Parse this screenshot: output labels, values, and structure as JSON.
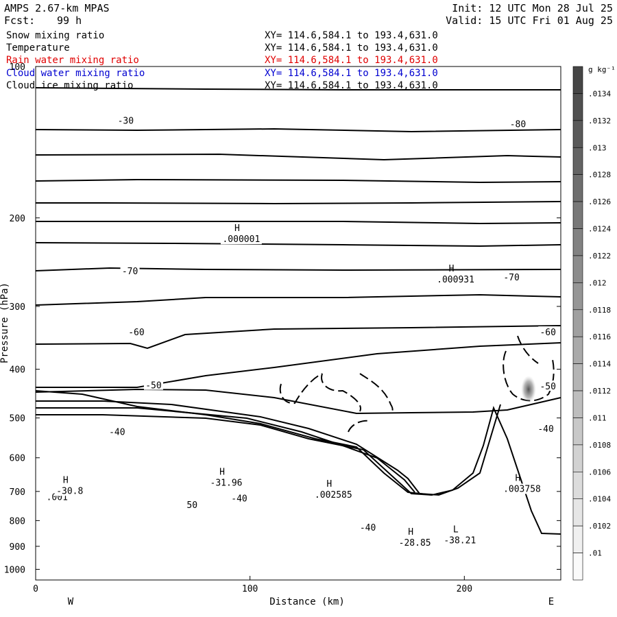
{
  "header": {
    "model": "AMPS 2.67-km MPAS",
    "fcst_label": "Fcst:",
    "fcst_value": "99 h",
    "init": "Init: 12 UTC Mon 28 Jul 25",
    "valid": "Valid: 15 UTC Fri 01 Aug 25"
  },
  "fields": [
    {
      "name": "Snow mixing ratio",
      "xy": "XY= 114.6,584.1 to 193.4,631.0",
      "color": "#000000"
    },
    {
      "name": "Temperature",
      "xy": "XY= 114.6,584.1 to 193.4,631.0",
      "color": "#000000"
    },
    {
      "name": "Rain water mixing ratio",
      "xy": "XY= 114.6,584.1 to 193.4,631.0",
      "color": "#e00000"
    },
    {
      "name": "Cloud water mixing ratio",
      "xy": "XY= 114.6,584.1 to 193.4,631.0",
      "color": "#0000d0"
    },
    {
      "name": "Cloud ice mixing ratio",
      "xy": "XY= 114.6,584.1 to 193.4,631.0",
      "color": "#000000"
    }
  ],
  "chart_data": {
    "type": "contour",
    "xlabel": "Distance (km)",
    "ylabel": "Pressure (hPa)",
    "xlim": [
      0,
      245
    ],
    "ylim": [
      100,
      1050
    ],
    "y_log_scale": true,
    "x_ticks": [
      0,
      100,
      200
    ],
    "y_ticks": [
      100,
      200,
      300,
      400,
      500,
      600,
      700,
      800,
      900,
      1000
    ],
    "left_end_label": "W",
    "right_end_label": "E",
    "temperature_contour_labels": [
      {
        "text": "-80",
        "x": 225,
        "p": 130
      },
      {
        "text": "-30",
        "x": 42,
        "p": 128
      },
      {
        "text": "-70",
        "x": 44,
        "p": 255
      },
      {
        "text": "-70",
        "x": 222,
        "p": 262
      },
      {
        "text": "-60",
        "x": 47,
        "p": 337
      },
      {
        "text": "-60",
        "x": 239,
        "p": 337
      },
      {
        "text": "-50",
        "x": 55,
        "p": 430
      },
      {
        "text": "-50",
        "x": 239,
        "p": 432
      },
      {
        "text": "-40",
        "x": 38,
        "p": 532
      },
      {
        "text": "-40",
        "x": 238,
        "p": 525
      },
      {
        "text": "-40",
        "x": 95,
        "p": 721
      },
      {
        "text": "-40",
        "x": 155,
        "p": 825
      },
      {
        "text": "50",
        "x": 73,
        "p": 743
      },
      {
        "text": ".001",
        "x": 10,
        "p": 717
      }
    ],
    "extrema": [
      {
        "kind": "H",
        "value": ".000001",
        "x": 94,
        "p": 218
      },
      {
        "kind": "H",
        "value": ".000931",
        "x": 194,
        "p": 262
      },
      {
        "kind": "H",
        "value": "-30.8",
        "x": 14,
        "p": 690
      },
      {
        "kind": "H",
        "value": "-31.96",
        "x": 87,
        "p": 665
      },
      {
        "kind": "H",
        "value": ".002585",
        "x": 137,
        "p": 702
      },
      {
        "kind": "H",
        "value": ".003758",
        "x": 225,
        "p": 684
      },
      {
        "kind": "H",
        "value": "-28.85",
        "x": 175,
        "p": 875
      },
      {
        "kind": "L",
        "value": "-38.21",
        "x": 196,
        "p": 866
      }
    ],
    "colorbar": {
      "units": "g kg⁻¹",
      "ticks": [
        ".0134",
        ".0132",
        ".013",
        ".0128",
        ".0126",
        ".0124",
        ".0122",
        ".012",
        ".0118",
        ".0116",
        ".0114",
        ".0112",
        ".011",
        ".0108",
        ".0106",
        ".0104",
        ".0102",
        ".01"
      ]
    }
  }
}
